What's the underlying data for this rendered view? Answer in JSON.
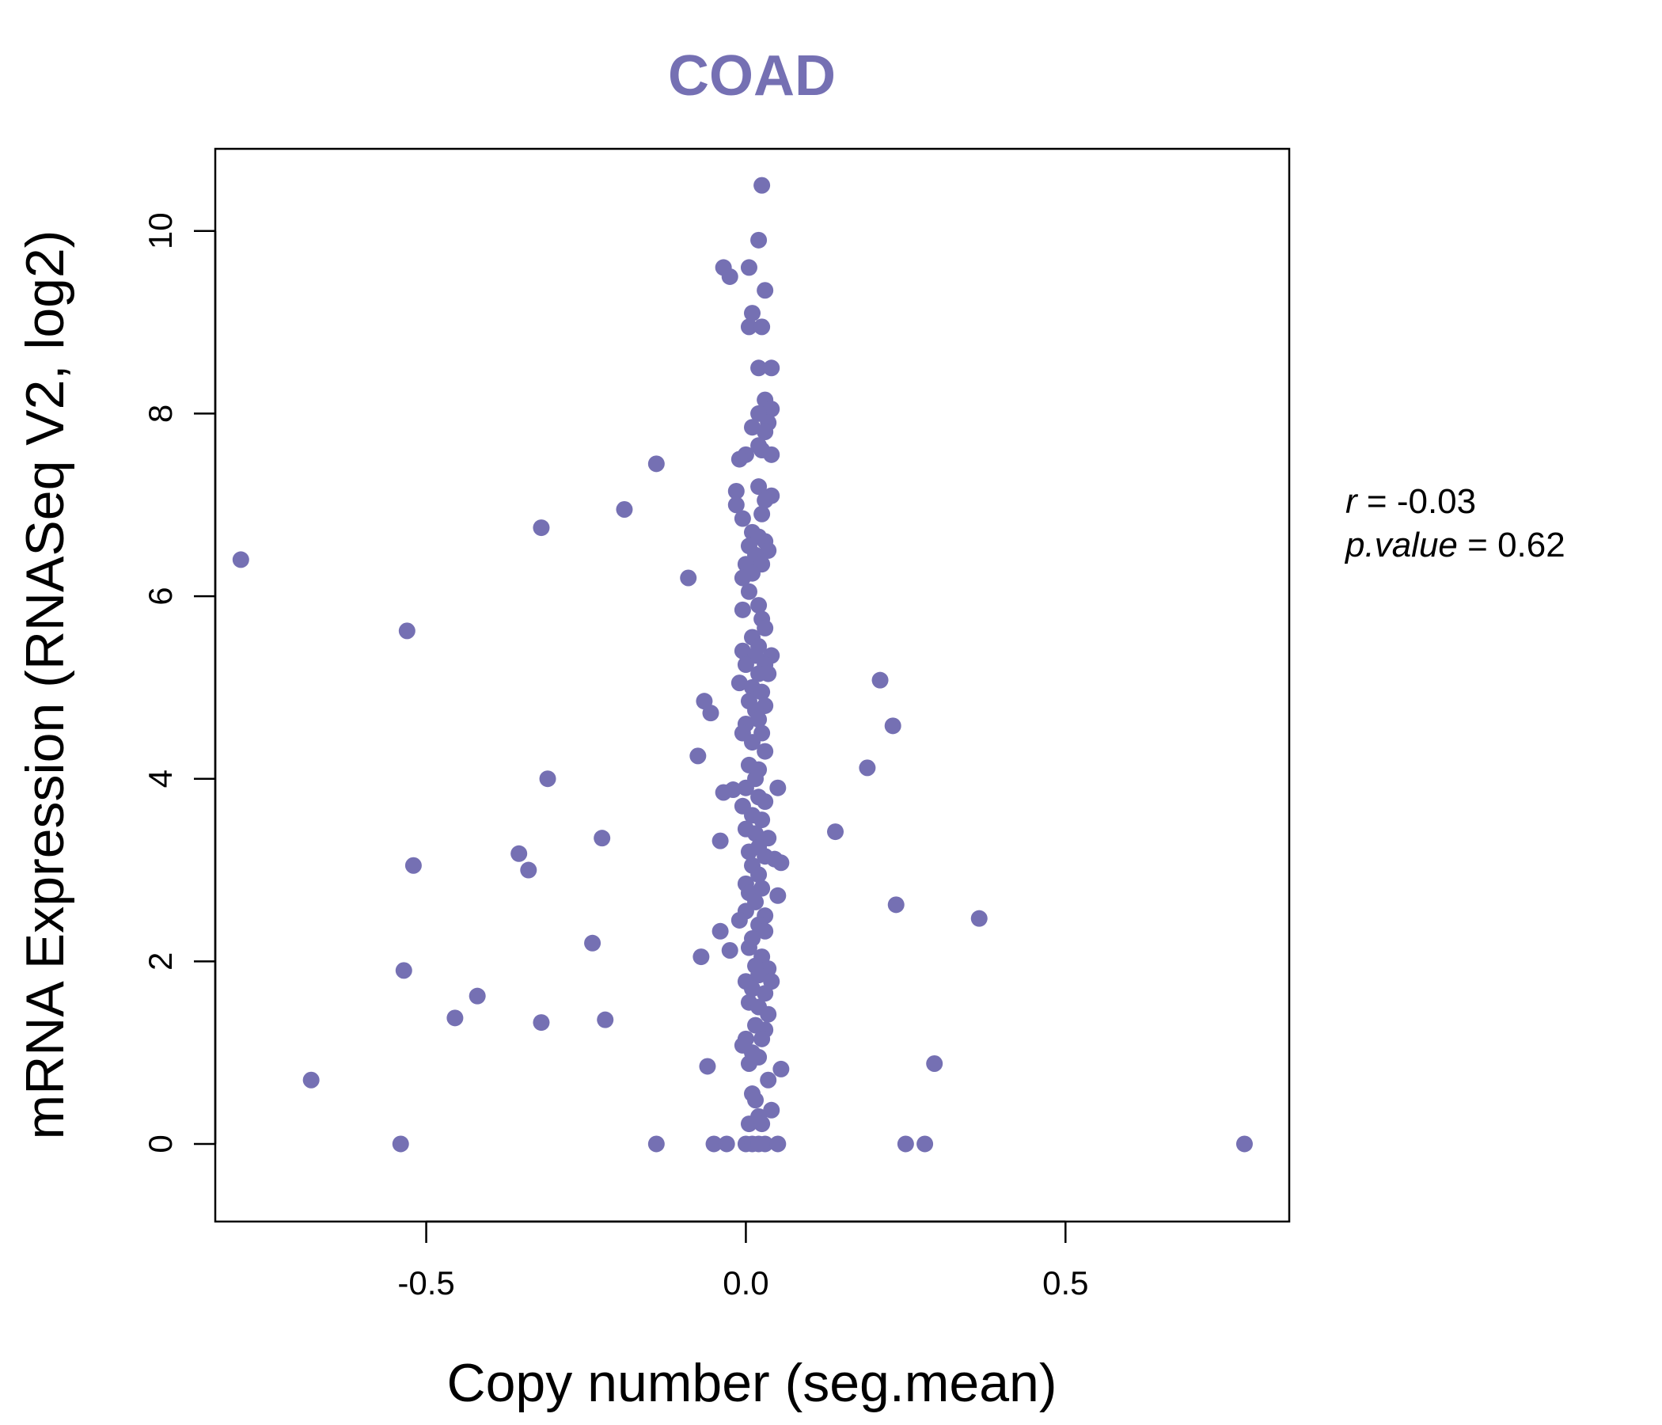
{
  "colors": {
    "accent": "#7570b3",
    "axis": "#000000",
    "background": "#ffffff"
  },
  "chart_data": {
    "type": "scatter",
    "title": "COAD",
    "xlabel": "Copy number (seg.mean)",
    "ylabel": "mRNA Expression (RNASeq V2, log2)",
    "xlim": [
      -0.83,
      0.85
    ],
    "ylim": [
      -0.85,
      10.9
    ],
    "xticks": [
      -0.5,
      0.0,
      0.5
    ],
    "xtick_labels": [
      "-0.5",
      "0.0",
      "0.5"
    ],
    "yticks": [
      0,
      2,
      4,
      6,
      8,
      10
    ],
    "ytick_labels": [
      "0",
      "2",
      "4",
      "6",
      "8",
      "10"
    ],
    "stats": {
      "r_label": "r",
      "r_value": "-0.03",
      "p_label": "p.value",
      "p_value": "0.62",
      "equals": "="
    },
    "series": [
      {
        "name": "samples",
        "points": [
          {
            "x": 0.025,
            "y": 10.5
          },
          {
            "x": 0.02,
            "y": 9.9
          },
          {
            "x": -0.035,
            "y": 9.6
          },
          {
            "x": 0.005,
            "y": 9.6
          },
          {
            "x": -0.025,
            "y": 9.5
          },
          {
            "x": 0.03,
            "y": 9.35
          },
          {
            "x": 0.01,
            "y": 9.1
          },
          {
            "x": 0.005,
            "y": 8.95
          },
          {
            "x": 0.025,
            "y": 8.95
          },
          {
            "x": 0.02,
            "y": 8.5
          },
          {
            "x": 0.04,
            "y": 8.5
          },
          {
            "x": 0.03,
            "y": 8.15
          },
          {
            "x": 0.04,
            "y": 8.05
          },
          {
            "x": 0.02,
            "y": 8.0
          },
          {
            "x": 0.035,
            "y": 7.9
          },
          {
            "x": 0.01,
            "y": 7.85
          },
          {
            "x": 0.03,
            "y": 7.8
          },
          {
            "x": 0.02,
            "y": 7.65
          },
          {
            "x": 0.025,
            "y": 7.6
          },
          {
            "x": 0.0,
            "y": 7.55
          },
          {
            "x": 0.04,
            "y": 7.55
          },
          {
            "x": -0.01,
            "y": 7.5
          },
          {
            "x": -0.14,
            "y": 7.45
          },
          {
            "x": 0.02,
            "y": 7.2
          },
          {
            "x": -0.015,
            "y": 7.15
          },
          {
            "x": 0.04,
            "y": 7.1
          },
          {
            "x": 0.03,
            "y": 7.05
          },
          {
            "x": -0.015,
            "y": 7.0
          },
          {
            "x": 0.025,
            "y": 6.9
          },
          {
            "x": -0.19,
            "y": 6.95
          },
          {
            "x": -0.005,
            "y": 6.85
          },
          {
            "x": -0.32,
            "y": 6.75
          },
          {
            "x": 0.01,
            "y": 6.7
          },
          {
            "x": 0.02,
            "y": 6.65
          },
          {
            "x": 0.005,
            "y": 6.55
          },
          {
            "x": 0.03,
            "y": 6.6
          },
          {
            "x": 0.035,
            "y": 6.5
          },
          {
            "x": 0.015,
            "y": 6.45
          },
          {
            "x": 0.0,
            "y": 6.35
          },
          {
            "x": 0.025,
            "y": 6.35
          },
          {
            "x": -0.79,
            "y": 6.4
          },
          {
            "x": 0.01,
            "y": 6.25
          },
          {
            "x": -0.005,
            "y": 6.2
          },
          {
            "x": -0.09,
            "y": 6.2
          },
          {
            "x": 0.005,
            "y": 6.05
          },
          {
            "x": 0.02,
            "y": 5.9
          },
          {
            "x": -0.005,
            "y": 5.85
          },
          {
            "x": 0.025,
            "y": 5.75
          },
          {
            "x": 0.03,
            "y": 5.65
          },
          {
            "x": -0.53,
            "y": 5.62
          },
          {
            "x": 0.01,
            "y": 5.55
          },
          {
            "x": 0.02,
            "y": 5.45
          },
          {
            "x": -0.005,
            "y": 5.4
          },
          {
            "x": 0.015,
            "y": 5.35
          },
          {
            "x": 0.04,
            "y": 5.35
          },
          {
            "x": 0.03,
            "y": 5.25
          },
          {
            "x": 0.0,
            "y": 5.25
          },
          {
            "x": 0.02,
            "y": 5.15
          },
          {
            "x": 0.035,
            "y": 5.15
          },
          {
            "x": 0.21,
            "y": 5.08
          },
          {
            "x": -0.01,
            "y": 5.05
          },
          {
            "x": 0.01,
            "y": 5.0
          },
          {
            "x": 0.025,
            "y": 4.95
          },
          {
            "x": 0.005,
            "y": 4.85
          },
          {
            "x": -0.065,
            "y": 4.85
          },
          {
            "x": 0.03,
            "y": 4.8
          },
          {
            "x": 0.015,
            "y": 4.75
          },
          {
            "x": -0.055,
            "y": 4.72
          },
          {
            "x": 0.02,
            "y": 4.65
          },
          {
            "x": 0.0,
            "y": 4.6
          },
          {
            "x": 0.23,
            "y": 4.58
          },
          {
            "x": -0.005,
            "y": 4.5
          },
          {
            "x": 0.025,
            "y": 4.5
          },
          {
            "x": 0.01,
            "y": 4.4
          },
          {
            "x": 0.03,
            "y": 4.3
          },
          {
            "x": -0.075,
            "y": 4.25
          },
          {
            "x": 0.005,
            "y": 4.15
          },
          {
            "x": 0.02,
            "y": 4.1
          },
          {
            "x": 0.19,
            "y": 4.12
          },
          {
            "x": -0.31,
            "y": 4.0
          },
          {
            "x": 0.015,
            "y": 4.0
          },
          {
            "x": 0.0,
            "y": 3.9
          },
          {
            "x": 0.05,
            "y": 3.9
          },
          {
            "x": -0.02,
            "y": 3.88
          },
          {
            "x": -0.035,
            "y": 3.85
          },
          {
            "x": 0.02,
            "y": 3.8
          },
          {
            "x": 0.03,
            "y": 3.75
          },
          {
            "x": -0.005,
            "y": 3.7
          },
          {
            "x": 0.01,
            "y": 3.6
          },
          {
            "x": 0.025,
            "y": 3.55
          },
          {
            "x": 0.0,
            "y": 3.45
          },
          {
            "x": 0.14,
            "y": 3.42
          },
          {
            "x": 0.015,
            "y": 3.4
          },
          {
            "x": -0.225,
            "y": 3.35
          },
          {
            "x": 0.035,
            "y": 3.35
          },
          {
            "x": -0.04,
            "y": 3.32
          },
          {
            "x": 0.02,
            "y": 3.25
          },
          {
            "x": 0.005,
            "y": 3.2
          },
          {
            "x": -0.355,
            "y": 3.18
          },
          {
            "x": 0.03,
            "y": 3.15
          },
          {
            "x": 0.045,
            "y": 3.12
          },
          {
            "x": 0.055,
            "y": 3.08
          },
          {
            "x": 0.01,
            "y": 3.05
          },
          {
            "x": -0.52,
            "y": 3.05
          },
          {
            "x": -0.34,
            "y": 3.0
          },
          {
            "x": 0.02,
            "y": 2.95
          },
          {
            "x": 0.0,
            "y": 2.85
          },
          {
            "x": 0.025,
            "y": 2.8
          },
          {
            "x": 0.005,
            "y": 2.75
          },
          {
            "x": 0.05,
            "y": 2.72
          },
          {
            "x": 0.015,
            "y": 2.65
          },
          {
            "x": 0.235,
            "y": 2.62
          },
          {
            "x": 0.0,
            "y": 2.55
          },
          {
            "x": 0.03,
            "y": 2.5
          },
          {
            "x": 0.365,
            "y": 2.47
          },
          {
            "x": -0.01,
            "y": 2.45
          },
          {
            "x": 0.02,
            "y": 2.4
          },
          {
            "x": -0.04,
            "y": 2.33
          },
          {
            "x": 0.03,
            "y": 2.33
          },
          {
            "x": 0.01,
            "y": 2.25
          },
          {
            "x": -0.24,
            "y": 2.2
          },
          {
            "x": 0.005,
            "y": 2.15
          },
          {
            "x": -0.025,
            "y": 2.12
          },
          {
            "x": 0.025,
            "y": 2.05
          },
          {
            "x": -0.07,
            "y": 2.05
          },
          {
            "x": 0.015,
            "y": 1.95
          },
          {
            "x": 0.035,
            "y": 1.92
          },
          {
            "x": -0.535,
            "y": 1.9
          },
          {
            "x": 0.02,
            "y": 1.85
          },
          {
            "x": 0.0,
            "y": 1.78
          },
          {
            "x": 0.04,
            "y": 1.78
          },
          {
            "x": 0.01,
            "y": 1.7
          },
          {
            "x": 0.03,
            "y": 1.65
          },
          {
            "x": -0.42,
            "y": 1.62
          },
          {
            "x": 0.005,
            "y": 1.55
          },
          {
            "x": 0.02,
            "y": 1.5
          },
          {
            "x": 0.035,
            "y": 1.42
          },
          {
            "x": -0.455,
            "y": 1.38
          },
          {
            "x": -0.22,
            "y": 1.36
          },
          {
            "x": -0.32,
            "y": 1.33
          },
          {
            "x": 0.015,
            "y": 1.3
          },
          {
            "x": 0.03,
            "y": 1.25
          },
          {
            "x": 0.0,
            "y": 1.15
          },
          {
            "x": 0.025,
            "y": 1.15
          },
          {
            "x": -0.005,
            "y": 1.08
          },
          {
            "x": 0.01,
            "y": 1.0
          },
          {
            "x": 0.02,
            "y": 0.95
          },
          {
            "x": 0.005,
            "y": 0.88
          },
          {
            "x": 0.295,
            "y": 0.88
          },
          {
            "x": -0.06,
            "y": 0.85
          },
          {
            "x": 0.055,
            "y": 0.82
          },
          {
            "x": 0.035,
            "y": 0.7
          },
          {
            "x": -0.68,
            "y": 0.7
          },
          {
            "x": 0.01,
            "y": 0.55
          },
          {
            "x": 0.015,
            "y": 0.48
          },
          {
            "x": 0.04,
            "y": 0.37
          },
          {
            "x": 0.02,
            "y": 0.3
          },
          {
            "x": 0.005,
            "y": 0.22
          },
          {
            "x": 0.025,
            "y": 0.22
          },
          {
            "x": -0.54,
            "y": 0.0
          },
          {
            "x": -0.14,
            "y": 0.0
          },
          {
            "x": -0.05,
            "y": 0.0
          },
          {
            "x": -0.03,
            "y": 0.0
          },
          {
            "x": 0.0,
            "y": 0.0
          },
          {
            "x": 0.01,
            "y": 0.0
          },
          {
            "x": 0.02,
            "y": 0.0
          },
          {
            "x": 0.03,
            "y": 0.0
          },
          {
            "x": 0.05,
            "y": 0.0
          },
          {
            "x": 0.25,
            "y": 0.0
          },
          {
            "x": 0.28,
            "y": 0.0
          },
          {
            "x": 0.78,
            "y": 0.0
          }
        ]
      }
    ]
  }
}
